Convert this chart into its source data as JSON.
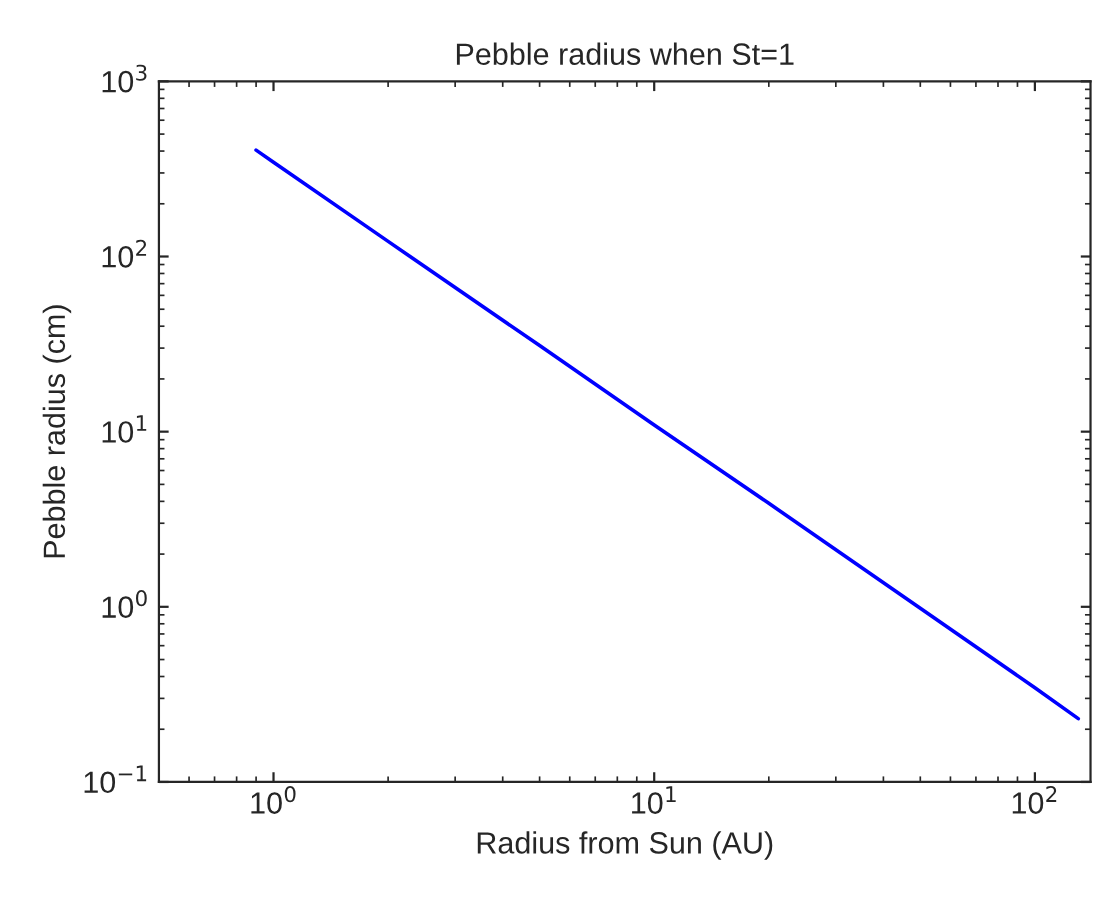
{
  "chart_data": {
    "type": "line",
    "title": "Pebble radius when St=1",
    "xlabel": "Radius from Sun (AU)",
    "ylabel": "Pebble radius (cm)",
    "log": "xy",
    "grid": false,
    "marker": "none",
    "line_style": "solid",
    "x": [
      0.9,
      1,
      2,
      5,
      10,
      20,
      50,
      100,
      130
    ],
    "series": [
      {
        "color": "#0000ff",
        "values": [
          405,
          345,
          122,
          31,
          10.9,
          3.9,
          0.98,
          0.345,
          0.23
        ]
      }
    ],
    "xlim": [
      0.5,
      140
    ],
    "ylim": [
      0.1,
      1000
    ],
    "xticks": [
      {
        "value": 1,
        "label": "10$^{0}$"
      },
      {
        "value": 10,
        "label": "10$^{1}$"
      },
      {
        "value": 100,
        "label": "10$^{2}$"
      }
    ],
    "yticks": [
      {
        "value": 0.1,
        "label": "10$^{−1}$"
      },
      {
        "value": 1,
        "label": "10$^{0}$"
      },
      {
        "value": 10,
        "label": "10$^{1}$"
      },
      {
        "value": 100,
        "label": "10$^{2}$"
      },
      {
        "value": 1000,
        "label": "10$^{3}$"
      }
    ]
  }
}
